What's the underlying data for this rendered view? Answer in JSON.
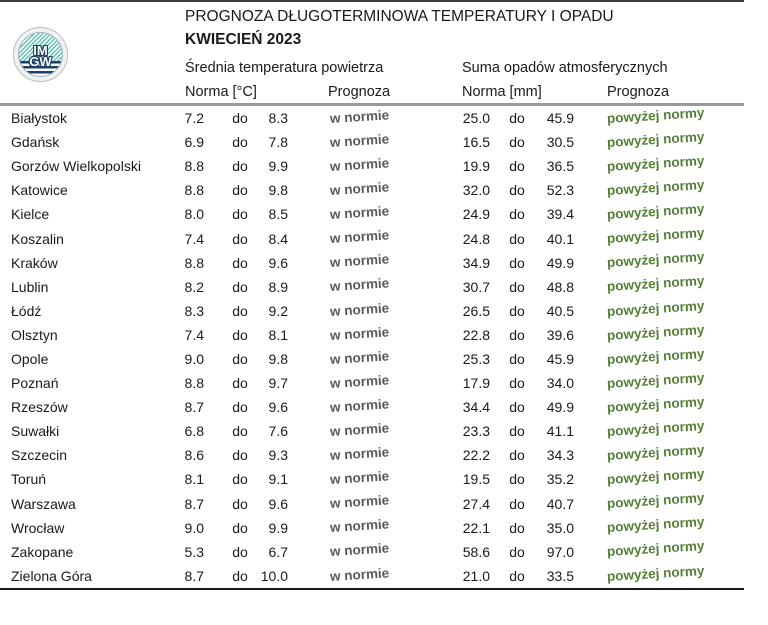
{
  "page": {
    "title": "PROGNOZA DŁUGOTERMINOWA TEMPERATURY I OPADU",
    "subtitle": "KWIECIEŃ 2023"
  },
  "logo": {
    "name": "imgw-logo",
    "line1": "IM",
    "line2": "GW"
  },
  "columns": {
    "temp_group": "Średnia temperatura powietrza",
    "precip_group": "Suma opadów atmosferycznych",
    "temp_norm": "Norma [°C]",
    "temp_forecast": "Prognoza",
    "precip_norm": "Norma [mm]",
    "precip_forecast": "Prognoza"
  },
  "colors": {
    "forecast_normal_gray": "#595959",
    "forecast_above_green": "#538135",
    "header_rule_gray": "#9a9a9a",
    "border_dark": "#1a1a1a",
    "logo_teal": "#5ec4b6",
    "logo_navy": "#1c3f63"
  },
  "table": {
    "separator": "do",
    "rows": [
      {
        "city": "Białystok",
        "t_low": "7.2",
        "t_high": "8.3",
        "t_prog": "w normie",
        "p_low": "25.0",
        "p_high": "45.9",
        "p_prog": "powyżej normy"
      },
      {
        "city": "Gdańsk",
        "t_low": "6.9",
        "t_high": "7.8",
        "t_prog": "w normie",
        "p_low": "16.5",
        "p_high": "30.5",
        "p_prog": "powyżej normy"
      },
      {
        "city": "Gorzów Wielkopolski",
        "t_low": "8.8",
        "t_high": "9.9",
        "t_prog": "w normie",
        "p_low": "19.9",
        "p_high": "36.5",
        "p_prog": "powyżej normy"
      },
      {
        "city": "Katowice",
        "t_low": "8.8",
        "t_high": "9.8",
        "t_prog": "w normie",
        "p_low": "32.0",
        "p_high": "52.3",
        "p_prog": "powyżej normy"
      },
      {
        "city": "Kielce",
        "t_low": "8.0",
        "t_high": "8.5",
        "t_prog": "w normie",
        "p_low": "24.9",
        "p_high": "39.4",
        "p_prog": "powyżej normy"
      },
      {
        "city": "Koszalin",
        "t_low": "7.4",
        "t_high": "8.4",
        "t_prog": "w normie",
        "p_low": "24.8",
        "p_high": "40.1",
        "p_prog": "powyżej normy"
      },
      {
        "city": "Kraków",
        "t_low": "8.8",
        "t_high": "9.6",
        "t_prog": "w normie",
        "p_low": "34.9",
        "p_high": "49.9",
        "p_prog": "powyżej normy"
      },
      {
        "city": "Lublin",
        "t_low": "8.2",
        "t_high": "8.9",
        "t_prog": "w normie",
        "p_low": "30.7",
        "p_high": "48.8",
        "p_prog": "powyżej normy"
      },
      {
        "city": "Łódź",
        "t_low": "8.3",
        "t_high": "9.2",
        "t_prog": "w normie",
        "p_low": "26.5",
        "p_high": "40.5",
        "p_prog": "powyżej normy"
      },
      {
        "city": "Olsztyn",
        "t_low": "7.4",
        "t_high": "8.1",
        "t_prog": "w normie",
        "p_low": "22.8",
        "p_high": "39.6",
        "p_prog": "powyżej normy"
      },
      {
        "city": "Opole",
        "t_low": "9.0",
        "t_high": "9.8",
        "t_prog": "w normie",
        "p_low": "25.3",
        "p_high": "45.9",
        "p_prog": "powyżej normy"
      },
      {
        "city": "Poznań",
        "t_low": "8.8",
        "t_high": "9.7",
        "t_prog": "w normie",
        "p_low": "17.9",
        "p_high": "34.0",
        "p_prog": "powyżej normy"
      },
      {
        "city": "Rzeszów",
        "t_low": "8.7",
        "t_high": "9.6",
        "t_prog": "w normie",
        "p_low": "34.4",
        "p_high": "49.9",
        "p_prog": "powyżej normy"
      },
      {
        "city": "Suwałki",
        "t_low": "6.8",
        "t_high": "7.6",
        "t_prog": "w normie",
        "p_low": "23.3",
        "p_high": "41.1",
        "p_prog": "powyżej normy"
      },
      {
        "city": "Szczecin",
        "t_low": "8.6",
        "t_high": "9.3",
        "t_prog": "w normie",
        "p_low": "22.2",
        "p_high": "34.3",
        "p_prog": "powyżej normy"
      },
      {
        "city": "Toruń",
        "t_low": "8.1",
        "t_high": "9.1",
        "t_prog": "w normie",
        "p_low": "19.5",
        "p_high": "35.2",
        "p_prog": "powyżej normy"
      },
      {
        "city": "Warszawa",
        "t_low": "8.7",
        "t_high": "9.6",
        "t_prog": "w normie",
        "p_low": "27.4",
        "p_high": "40.7",
        "p_prog": "powyżej normy"
      },
      {
        "city": "Wrocław",
        "t_low": "9.0",
        "t_high": "9.9",
        "t_prog": "w normie",
        "p_low": "22.1",
        "p_high": "35.0",
        "p_prog": "powyżej normy"
      },
      {
        "city": "Zakopane",
        "t_low": "5.3",
        "t_high": "6.7",
        "t_prog": "w normie",
        "p_low": "58.6",
        "p_high": "97.0",
        "p_prog": "powyżej normy"
      },
      {
        "city": "Zielona Góra",
        "t_low": "8.7",
        "t_high": "10.0",
        "t_prog": "w normie",
        "p_low": "21.0",
        "p_high": "33.5",
        "p_prog": "powyżej normy"
      }
    ]
  }
}
